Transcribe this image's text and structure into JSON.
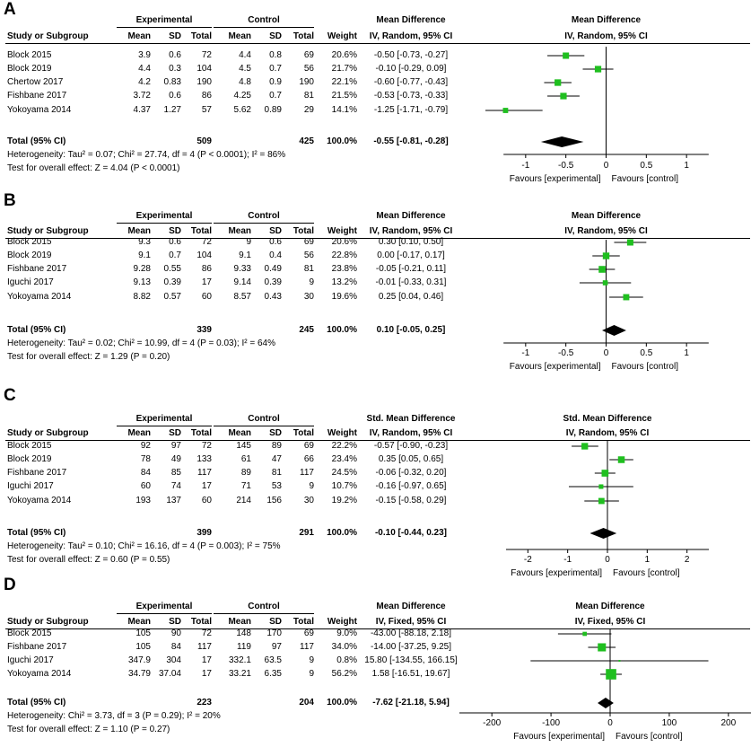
{
  "headers": {
    "experimental": "Experimental",
    "control": "Control",
    "study": "Study or Subgroup",
    "mean": "Mean",
    "sd": "SD",
    "total": "Total",
    "weight": "Weight",
    "favours_left": "Favours [experimental]",
    "favours_right": "Favours [control]"
  },
  "colors": {
    "square": "#1fbf1f",
    "diamond": "#000000",
    "ci": "#000000"
  },
  "chart_data": [
    {
      "label": "A",
      "type": "forest",
      "effect_title": "Mean Difference",
      "effect_subtitle": "IV, Random, 95% CI",
      "studies": [
        {
          "name": "Block 2015",
          "e_mean": "3.9",
          "e_sd": "0.6",
          "e_total": "72",
          "c_mean": "4.4",
          "c_sd": "0.8",
          "c_total": "69",
          "weight": "20.6%",
          "ci_text": "-0.50 [-0.73, -0.27]",
          "est": -0.5,
          "lo": -0.73,
          "hi": -0.27,
          "w": 20.6
        },
        {
          "name": "Block 2019",
          "e_mean": "4.4",
          "e_sd": "0.3",
          "e_total": "104",
          "c_mean": "4.5",
          "c_sd": "0.7",
          "c_total": "56",
          "weight": "21.7%",
          "ci_text": "-0.10 [-0.29, 0.09]",
          "est": -0.1,
          "lo": -0.29,
          "hi": 0.09,
          "w": 21.7
        },
        {
          "name": "Chertow 2017",
          "e_mean": "4.2",
          "e_sd": "0.83",
          "e_total": "190",
          "c_mean": "4.8",
          "c_sd": "0.9",
          "c_total": "190",
          "weight": "22.1%",
          "ci_text": "-0.60 [-0.77, -0.43]",
          "est": -0.6,
          "lo": -0.77,
          "hi": -0.43,
          "w": 22.1
        },
        {
          "name": "Fishbane 2017",
          "e_mean": "3.72",
          "e_sd": "0.6",
          "e_total": "86",
          "c_mean": "4.25",
          "c_sd": "0.7",
          "c_total": "81",
          "weight": "21.5%",
          "ci_text": "-0.53 [-0.73, -0.33]",
          "est": -0.53,
          "lo": -0.73,
          "hi": -0.33,
          "w": 21.5
        },
        {
          "name": "Yokoyama 2014",
          "e_mean": "4.37",
          "e_sd": "1.27",
          "e_total": "57",
          "c_mean": "5.62",
          "c_sd": "0.89",
          "c_total": "29",
          "weight": "14.1%",
          "ci_text": "-1.25 [-1.71, -0.79]",
          "est": -1.25,
          "lo": -1.71,
          "hi": -0.79,
          "w": 14.1
        }
      ],
      "total": {
        "name": "Total (95% CI)",
        "e_total": "509",
        "c_total": "425",
        "weight": "100.0%",
        "ci_text": "-0.55 [-0.81, -0.28]",
        "est": -0.55,
        "lo": -0.81,
        "hi": -0.28
      },
      "heterogeneity": "Heterogeneity: Tau² = 0.07; Chi² = 27.74, df = 4 (P < 0.0001); I² = 86%",
      "overall": "Test for overall effect: Z = 4.04 (P < 0.0001)",
      "xlim": [
        -1.5,
        1.5
      ],
      "ticks": [
        -1,
        -0.5,
        0,
        0.5,
        1
      ],
      "tick_labels": [
        "-1",
        "-0.5",
        "0",
        "0.5",
        "1"
      ]
    },
    {
      "label": "B",
      "type": "forest",
      "effect_title": "Mean Difference",
      "effect_subtitle": "IV, Random, 95% CI",
      "studies": [
        {
          "name": "Block 2015",
          "e_mean": "9.3",
          "e_sd": "0.6",
          "e_total": "72",
          "c_mean": "9",
          "c_sd": "0.6",
          "c_total": "69",
          "weight": "20.6%",
          "ci_text": "0.30 [0.10, 0.50]",
          "est": 0.3,
          "lo": 0.1,
          "hi": 0.5,
          "w": 20.6
        },
        {
          "name": "Block 2019",
          "e_mean": "9.1",
          "e_sd": "0.7",
          "e_total": "104",
          "c_mean": "9.1",
          "c_sd": "0.4",
          "c_total": "56",
          "weight": "22.8%",
          "ci_text": "0.00 [-0.17, 0.17]",
          "est": 0.0,
          "lo": -0.17,
          "hi": 0.17,
          "w": 22.8
        },
        {
          "name": "Fishbane 2017",
          "e_mean": "9.28",
          "e_sd": "0.55",
          "e_total": "86",
          "c_mean": "9.33",
          "c_sd": "0.49",
          "c_total": "81",
          "weight": "23.8%",
          "ci_text": "-0.05 [-0.21, 0.11]",
          "est": -0.05,
          "lo": -0.21,
          "hi": 0.11,
          "w": 23.8
        },
        {
          "name": "Iguchi 2017",
          "e_mean": "9.13",
          "e_sd": "0.39",
          "e_total": "17",
          "c_mean": "9.14",
          "c_sd": "0.39",
          "c_total": "9",
          "weight": "13.2%",
          "ci_text": "-0.01 [-0.33, 0.31]",
          "est": -0.01,
          "lo": -0.33,
          "hi": 0.31,
          "w": 13.2
        },
        {
          "name": "Yokoyama 2014",
          "e_mean": "8.82",
          "e_sd": "0.57",
          "e_total": "60",
          "c_mean": "8.57",
          "c_sd": "0.43",
          "c_total": "30",
          "weight": "19.6%",
          "ci_text": "0.25 [0.04, 0.46]",
          "est": 0.25,
          "lo": 0.04,
          "hi": 0.46,
          "w": 19.6
        }
      ],
      "total": {
        "name": "Total (95% CI)",
        "e_total": "339",
        "c_total": "245",
        "weight": "100.0%",
        "ci_text": "0.10 [-0.05, 0.25]",
        "est": 0.1,
        "lo": -0.05,
        "hi": 0.25
      },
      "heterogeneity": "Heterogeneity: Tau² = 0.02; Chi² = 10.99, df = 4 (P = 0.03); I² = 64%",
      "overall": "Test for overall effect: Z = 1.29 (P = 0.20)",
      "xlim": [
        -1.5,
        1.5
      ],
      "ticks": [
        -1,
        -0.5,
        0,
        0.5,
        1
      ],
      "tick_labels": [
        "-1",
        "-0.5",
        "0",
        "0.5",
        "1"
      ]
    },
    {
      "label": "C",
      "type": "forest",
      "effect_title": "Std. Mean Difference",
      "effect_subtitle": "IV, Random, 95% CI",
      "studies": [
        {
          "name": "Block 2015",
          "e_mean": "92",
          "e_sd": "97",
          "e_total": "72",
          "c_mean": "145",
          "c_sd": "89",
          "c_total": "69",
          "weight": "22.2%",
          "ci_text": "-0.57 [-0.90, -0.23]",
          "est": -0.57,
          "lo": -0.9,
          "hi": -0.23,
          "w": 22.2
        },
        {
          "name": "Block 2019",
          "e_mean": "78",
          "e_sd": "49",
          "e_total": "133",
          "c_mean": "61",
          "c_sd": "47",
          "c_total": "66",
          "weight": "23.4%",
          "ci_text": "0.35 [0.05, 0.65]",
          "est": 0.35,
          "lo": 0.05,
          "hi": 0.65,
          "w": 23.4
        },
        {
          "name": "Fishbane 2017",
          "e_mean": "84",
          "e_sd": "85",
          "e_total": "117",
          "c_mean": "89",
          "c_sd": "81",
          "c_total": "117",
          "weight": "24.5%",
          "ci_text": "-0.06 [-0.32, 0.20]",
          "est": -0.06,
          "lo": -0.32,
          "hi": 0.2,
          "w": 24.5
        },
        {
          "name": "Iguchi 2017",
          "e_mean": "60",
          "e_sd": "74",
          "e_total": "17",
          "c_mean": "71",
          "c_sd": "53",
          "c_total": "9",
          "weight": "10.7%",
          "ci_text": "-0.16 [-0.97, 0.65]",
          "est": -0.16,
          "lo": -0.97,
          "hi": 0.65,
          "w": 10.7
        },
        {
          "name": "Yokoyama 2014",
          "e_mean": "193",
          "e_sd": "137",
          "e_total": "60",
          "c_mean": "214",
          "c_sd": "156",
          "c_total": "30",
          "weight": "19.2%",
          "ci_text": "-0.15 [-0.58, 0.29]",
          "est": -0.15,
          "lo": -0.58,
          "hi": 0.29,
          "w": 19.2
        }
      ],
      "total": {
        "name": "Total (95% CI)",
        "e_total": "399",
        "c_total": "291",
        "weight": "100.0%",
        "ci_text": "-0.10 [-0.44, 0.23]",
        "est": -0.1,
        "lo": -0.44,
        "hi": 0.23
      },
      "heterogeneity": "Heterogeneity: Tau² = 0.10; Chi² = 16.16, df = 4 (P = 0.003); I² = 75%",
      "overall": "Test for overall effect: Z = 0.60 (P = 0.55)",
      "xlim": [
        -3,
        3
      ],
      "ticks": [
        -2,
        -1,
        0,
        1,
        2
      ],
      "tick_labels": [
        "-2",
        "-1",
        "0",
        "1",
        "2"
      ]
    },
    {
      "label": "D",
      "type": "forest",
      "effect_title": "Mean Difference",
      "effect_subtitle": "IV, Fixed, 95% CI",
      "studies": [
        {
          "name": "Block 2015",
          "e_mean": "105",
          "e_sd": "90",
          "e_total": "72",
          "c_mean": "148",
          "c_sd": "170",
          "c_total": "69",
          "weight": "9.0%",
          "ci_text": "-43.00 [-88.18, 2.18]",
          "est": -43.0,
          "lo": -88.18,
          "hi": 2.18,
          "w": 9.0
        },
        {
          "name": "Fishbane 2017",
          "e_mean": "105",
          "e_sd": "84",
          "e_total": "117",
          "c_mean": "119",
          "c_sd": "97",
          "c_total": "117",
          "weight": "34.0%",
          "ci_text": "-14.00 [-37.25, 9.25]",
          "est": -14.0,
          "lo": -37.25,
          "hi": 9.25,
          "w": 34.0
        },
        {
          "name": "Iguchi 2017",
          "e_mean": "347.9",
          "e_sd": "304",
          "e_total": "17",
          "c_mean": "332.1",
          "c_sd": "63.5",
          "c_total": "9",
          "weight": "0.8%",
          "ci_text": "15.80 [-134.55, 166.15]",
          "est": 15.8,
          "lo": -134.55,
          "hi": 166.15,
          "w": 0.8
        },
        {
          "name": "Yokoyama 2014",
          "e_mean": "34.79",
          "e_sd": "37.04",
          "e_total": "17",
          "c_mean": "33.21",
          "c_sd": "6.35",
          "c_total": "9",
          "weight": "56.2%",
          "ci_text": "1.58 [-16.51, 19.67]",
          "est": 1.58,
          "lo": -16.51,
          "hi": 19.67,
          "w": 56.2
        }
      ],
      "total": {
        "name": "Total (95% CI)",
        "e_total": "223",
        "c_total": "204",
        "weight": "100.0%",
        "ci_text": "-7.62 [-21.18, 5.94]",
        "est": -7.62,
        "lo": -21.18,
        "hi": 5.94
      },
      "heterogeneity": "Heterogeneity: Chi² = 3.73, df = 3 (P = 0.29); I² = 20%",
      "overall": "Test for overall effect: Z = 1.10 (P = 0.27)",
      "xlim": [
        -220,
        220
      ],
      "ticks": [
        -200,
        -100,
        0,
        100,
        200
      ],
      "tick_labels": [
        "-200",
        "-100",
        "0",
        "100",
        "200"
      ]
    }
  ]
}
